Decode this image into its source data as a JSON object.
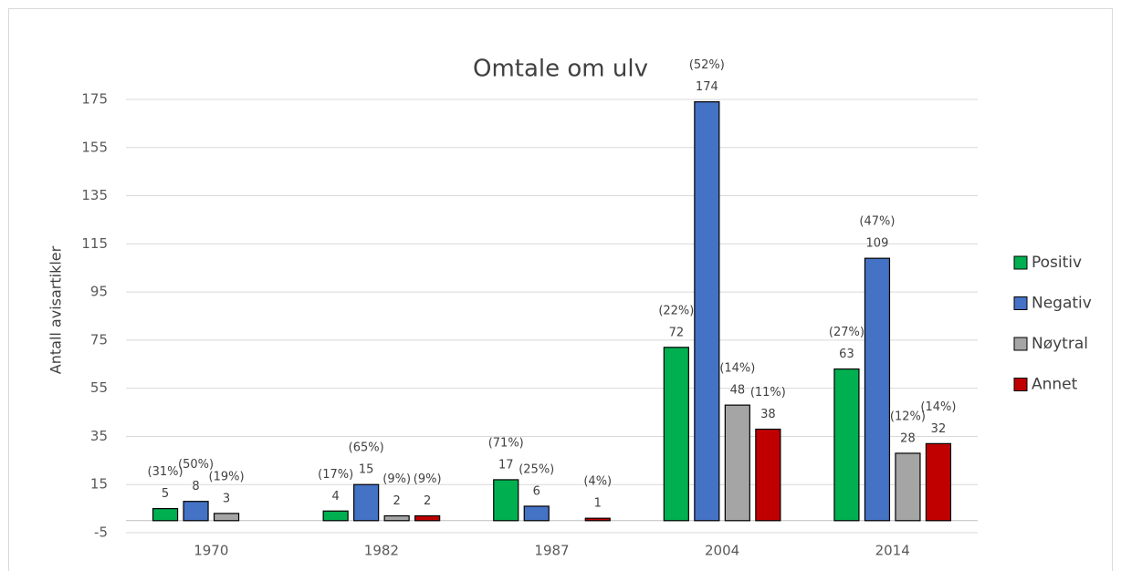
{
  "chart_data": {
    "type": "bar",
    "title": "Omtale om ulv",
    "y_label": "Antall avisartikler",
    "categories": [
      "1970",
      "1982",
      "1987",
      "2004",
      "2014"
    ],
    "series": [
      {
        "name": "Positiv",
        "color": "#00b050",
        "values": [
          5,
          4,
          17,
          72,
          63
        ],
        "percent_labels": [
          "(31%)",
          "(17%)",
          "(71%)",
          "(22%)",
          "(27%)"
        ]
      },
      {
        "name": "Negativ",
        "color": "#4472c4",
        "values": [
          8,
          15,
          6,
          174,
          109
        ],
        "percent_labels": [
          "(50%)",
          "(65%)",
          "(25%)",
          "(52%)",
          "(47%)"
        ]
      },
      {
        "name": "Nøytral",
        "color": "#a5a5a5",
        "values": [
          3,
          2,
          null,
          48,
          28
        ],
        "percent_labels": [
          "(19%)",
          "(9%)",
          null,
          "(14%)",
          "(12%)"
        ]
      },
      {
        "name": "Annet",
        "color": "#c00000",
        "values": [
          null,
          2,
          1,
          38,
          32
        ],
        "percent_labels": [
          null,
          "(9%)",
          "(4%)",
          "(11%)",
          "(14%)"
        ]
      }
    ],
    "ylim": [
      -5,
      175
    ],
    "yticks": [
      -5,
      15,
      35,
      55,
      75,
      95,
      115,
      135,
      155,
      175
    ],
    "grid": true,
    "legend": "right"
  }
}
